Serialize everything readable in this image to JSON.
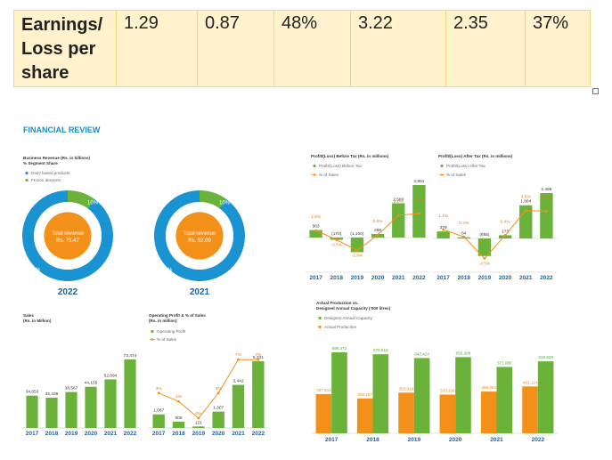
{
  "eps_table": {
    "label": "Earnings/ Loss per share",
    "values": [
      "1.29",
      "0.87",
      "48%",
      "3.22",
      "2.35",
      "37%"
    ]
  },
  "review": {
    "title": "FINANCIAL REVIEW"
  },
  "colors": {
    "green": "#6ab23a",
    "orange": "#f39019",
    "blue": "#1a93d2",
    "navy": "#1f5f99"
  },
  "chart_data": [
    {
      "type": "pie",
      "title": "Business Revenue (Rs. in billions)",
      "subtitle": "% Segment Share",
      "legend": [
        "Dairy based products",
        "Frozen desserts"
      ],
      "slices": [
        {
          "name": "Dairy based products",
          "value": 90,
          "label": "90%"
        },
        {
          "name": "Frozen desserts",
          "value": 10,
          "label": "10%"
        }
      ],
      "center_label": [
        "Total revenue",
        "Rs. 73.47"
      ],
      "xlabel": "2022"
    },
    {
      "type": "pie",
      "slices": [
        {
          "name": "Dairy based products",
          "value": 90,
          "label": "90%"
        },
        {
          "name": "Frozen desserts",
          "value": 10,
          "label": "10%"
        }
      ],
      "center_label": [
        "Total revenue",
        "Rs. 52.09"
      ],
      "xlabel": "2021"
    },
    {
      "type": "bar",
      "title": "Profit/(Loss) Before Tax (Rs. in millions)",
      "legend": [
        "Profit/(Loss) Before Tax",
        "% of Sales"
      ],
      "categories": [
        "2017",
        "2018",
        "2019",
        "2020",
        "2021",
        "2022"
      ],
      "values": [
        563,
        -170,
        -1100,
        268,
        2580,
        3951
      ],
      "value_labels": [
        "563",
        "(170)",
        "(1,100)",
        "268",
        "2,580",
        "3,951"
      ],
      "pct_values": [
        1.6,
        -0.5,
        -2.9,
        0.6,
        5.0,
        5.4
      ],
      "pct_labels": [
        "1.6%",
        "-0.5%",
        "-2.9%",
        "0.6%",
        "5.0%",
        "5.4%"
      ]
    },
    {
      "type": "bar",
      "title": "Profit/(Loss) After Tax (Rs. in millions)",
      "legend": [
        "Profit/(Loss) After Tax",
        "% of Sales"
      ],
      "categories": [
        "2017",
        "2018",
        "2019",
        "2020",
        "2021",
        "2022"
      ],
      "values": [
        379,
        64,
        -955,
        173,
        1804,
        2466
      ],
      "value_labels": [
        "379",
        "64",
        "(955)",
        "173",
        "1,804",
        "2,466"
      ],
      "pct_values": [
        1.1,
        0.2,
        -2.5,
        0.4,
        3.5,
        3.4
      ],
      "pct_labels": [
        "1.1%",
        "0.2%",
        "-2.5%",
        "0.4%",
        "3.5%",
        "3.4%"
      ]
    },
    {
      "type": "bar",
      "title": "Sales",
      "subtitle": "(Rs. in Million)",
      "categories": [
        "2017",
        "2018",
        "2019",
        "2020",
        "2021",
        "2022"
      ],
      "values": [
        34653,
        32439,
        38567,
        44155,
        52094,
        73474
      ],
      "value_labels": [
        "34,653",
        "32,439",
        "38,567",
        "44,155",
        "52,094",
        "73,474"
      ]
    },
    {
      "type": "bar",
      "title": "Operating Profit & % of Sales",
      "subtitle": "(Rs. in million)",
      "legend": [
        "Operating Profit",
        "% of Sales"
      ],
      "categories": [
        "2017",
        "2018",
        "2019",
        "2020",
        "2021",
        "2022"
      ],
      "values": [
        1087,
        505,
        121,
        1307,
        3442,
        5331
      ],
      "value_labels": [
        "1,087",
        "505",
        "121",
        "1,307",
        "3,442",
        "5,331"
      ],
      "pct_values": [
        3,
        2,
        0,
        3,
        7,
        7
      ],
      "pct_labels": [
        "3%",
        "2%",
        "0%",
        "3%",
        "7%",
        "7%"
      ]
    },
    {
      "type": "bar",
      "title": "Actual Production vs.",
      "subtitle": "Designed Annual Capacity ('000 litres)",
      "legend": [
        "Designed Annual Capacity",
        "Actual Production"
      ],
      "categories": [
        "2017",
        "2018",
        "2019",
        "2020",
        "2021",
        "2022"
      ],
      "series": [
        {
          "name": "Designed Annual Capacity",
          "values": [
            696472,
            679519,
            647424,
            655308,
            571065,
            618929
          ],
          "labels": [
            "696,472",
            "679,519",
            "647,424",
            "655,308",
            "571,065",
            "618,929"
          ]
        },
        {
          "name": "Actual Production",
          "values": [
            337811,
            300157,
            350019,
            333136,
            359204,
            403114
          ],
          "labels": [
            "337,811",
            "300,157",
            "350,019",
            "333,136",
            "359,204",
            "403,114"
          ]
        }
      ]
    }
  ]
}
